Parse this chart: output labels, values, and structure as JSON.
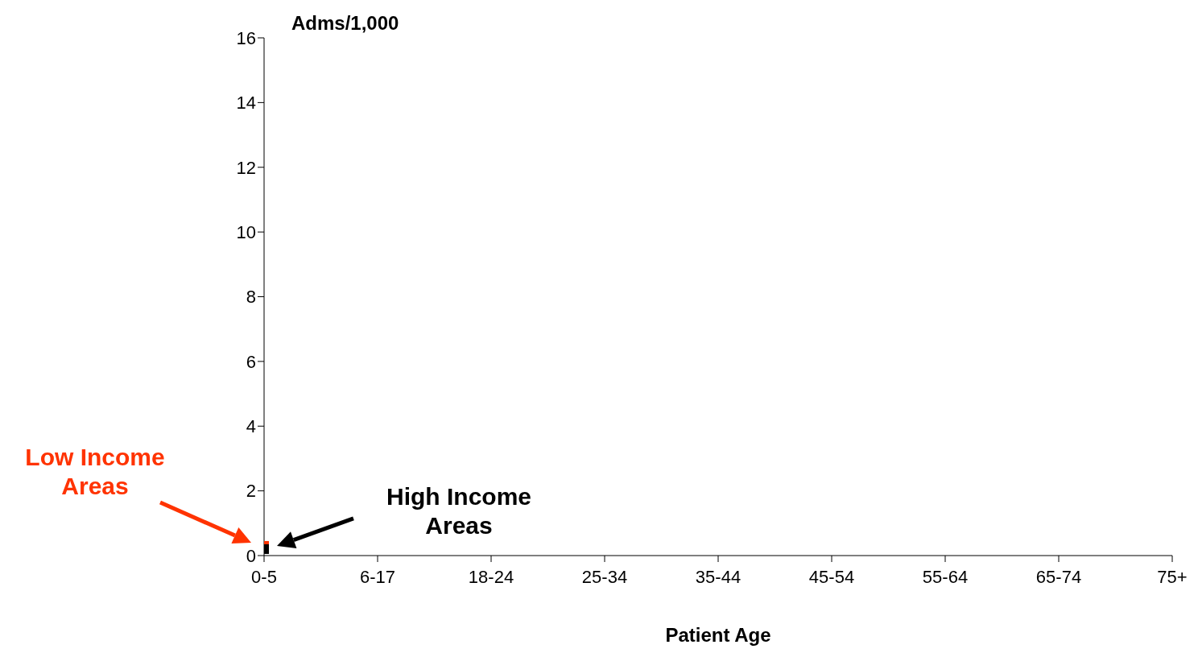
{
  "chart_data": {
    "type": "line",
    "xlabel": "Patient Age",
    "ylabel": "Adms/1,000",
    "categories": [
      "0-5",
      "6-17",
      "18-24",
      "25-34",
      "35-44",
      "45-54",
      "55-64",
      "65-74",
      "75+"
    ],
    "series": [
      {
        "name": "Low Income Areas",
        "color": "#ff3300",
        "values": [
          0.3,
          null,
          null,
          null,
          null,
          null,
          null,
          null,
          null
        ]
      },
      {
        "name": "High Income Areas",
        "color": "#000000",
        "values": [
          0.2,
          null,
          null,
          null,
          null,
          null,
          null,
          null,
          null
        ]
      }
    ],
    "ylim": [
      0,
      16
    ],
    "yticks": [
      0,
      2,
      4,
      6,
      8,
      10,
      12,
      14,
      16
    ],
    "grid": false,
    "legend": false,
    "marker": "square"
  }
}
